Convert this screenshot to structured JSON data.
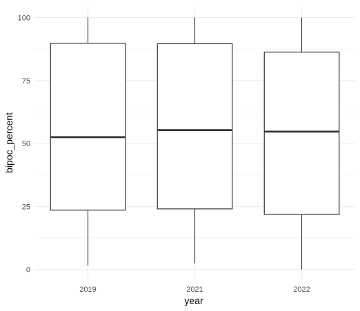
{
  "chart_data": {
    "type": "boxplot",
    "xlabel": "year",
    "ylabel": "bipoc_percent",
    "categories": [
      "2019",
      "2021",
      "2022"
    ],
    "boxes": [
      {
        "category": "2019",
        "whisker_low": 1.5,
        "q1": 23.5,
        "median": 52.5,
        "q3": 89.8,
        "whisker_high": 100
      },
      {
        "category": "2021",
        "whisker_low": 2.3,
        "q1": 24.0,
        "median": 55.3,
        "q3": 89.6,
        "whisker_high": 100
      },
      {
        "category": "2022",
        "whisker_low": 0.0,
        "q1": 21.8,
        "median": 54.7,
        "q3": 86.3,
        "whisker_high": 100
      }
    ],
    "ylim": [
      0,
      100
    ],
    "yticks": [
      0,
      25,
      50,
      75,
      100
    ],
    "grid": true,
    "legend": "none",
    "colors": {
      "box_fill": "#ffffff",
      "box_stroke": "#333333",
      "median": "#333333",
      "grid_major": "#ebebeb",
      "grid_minor": "#f5f5f5",
      "tick_text": "#4d4d4d"
    }
  }
}
